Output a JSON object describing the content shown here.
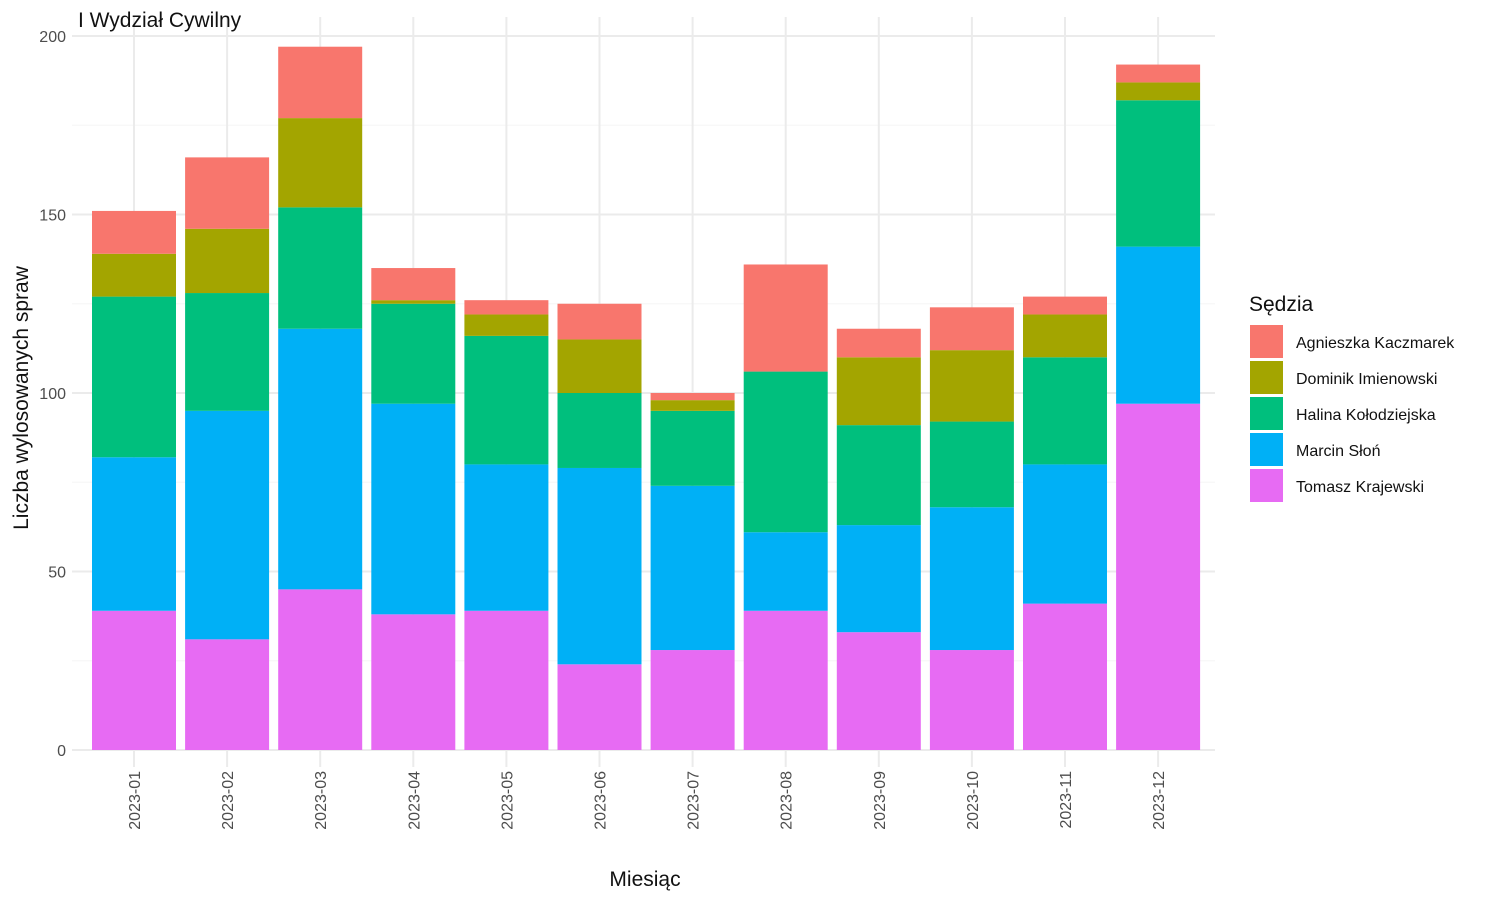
{
  "chart_data": {
    "type": "bar",
    "stacked": true,
    "title": "I Wydział Cywilny",
    "xlabel": "Miesiąc",
    "ylabel": "Liczba wylosowanych spraw",
    "ylim": [
      0,
      200
    ],
    "yticks": [
      0,
      50,
      100,
      150,
      200
    ],
    "grid": true,
    "legend_title": "Sędzia",
    "legend_position": "right",
    "categories": [
      "2023-01",
      "2023-02",
      "2023-03",
      "2023-04",
      "2023-05",
      "2023-06",
      "2023-07",
      "2023-08",
      "2023-09",
      "2023-10",
      "2023-11",
      "2023-12"
    ],
    "series": [
      {
        "name": "Tomasz Krajewski",
        "color": "#E76BF3",
        "values": [
          39,
          31,
          45,
          38,
          39,
          24,
          28,
          39,
          33,
          28,
          41,
          97
        ]
      },
      {
        "name": "Marcin Słoń",
        "color": "#00B0F6",
        "values": [
          43,
          64,
          73,
          59,
          41,
          55,
          46,
          22,
          30,
          40,
          39,
          44
        ]
      },
      {
        "name": "Halina Kołodziejska",
        "color": "#00BF7D",
        "values": [
          45,
          33,
          34,
          28,
          36,
          21,
          21,
          45,
          28,
          24,
          30,
          41
        ]
      },
      {
        "name": "Dominik Imienowski",
        "color": "#A3A500",
        "values": [
          12,
          18,
          25,
          1,
          6,
          15,
          3,
          0,
          19,
          20,
          12,
          5
        ]
      },
      {
        "name": "Agnieszka Kaczmarek",
        "color": "#F8766D",
        "values": [
          12,
          20,
          20,
          9,
          4,
          10,
          2,
          30,
          8,
          12,
          5,
          5
        ]
      }
    ],
    "legend_order": [
      "Agnieszka Kaczmarek",
      "Dominik Imienowski",
      "Halina Kołodziejska",
      "Marcin Słoń",
      "Tomasz Krajewski"
    ]
  }
}
